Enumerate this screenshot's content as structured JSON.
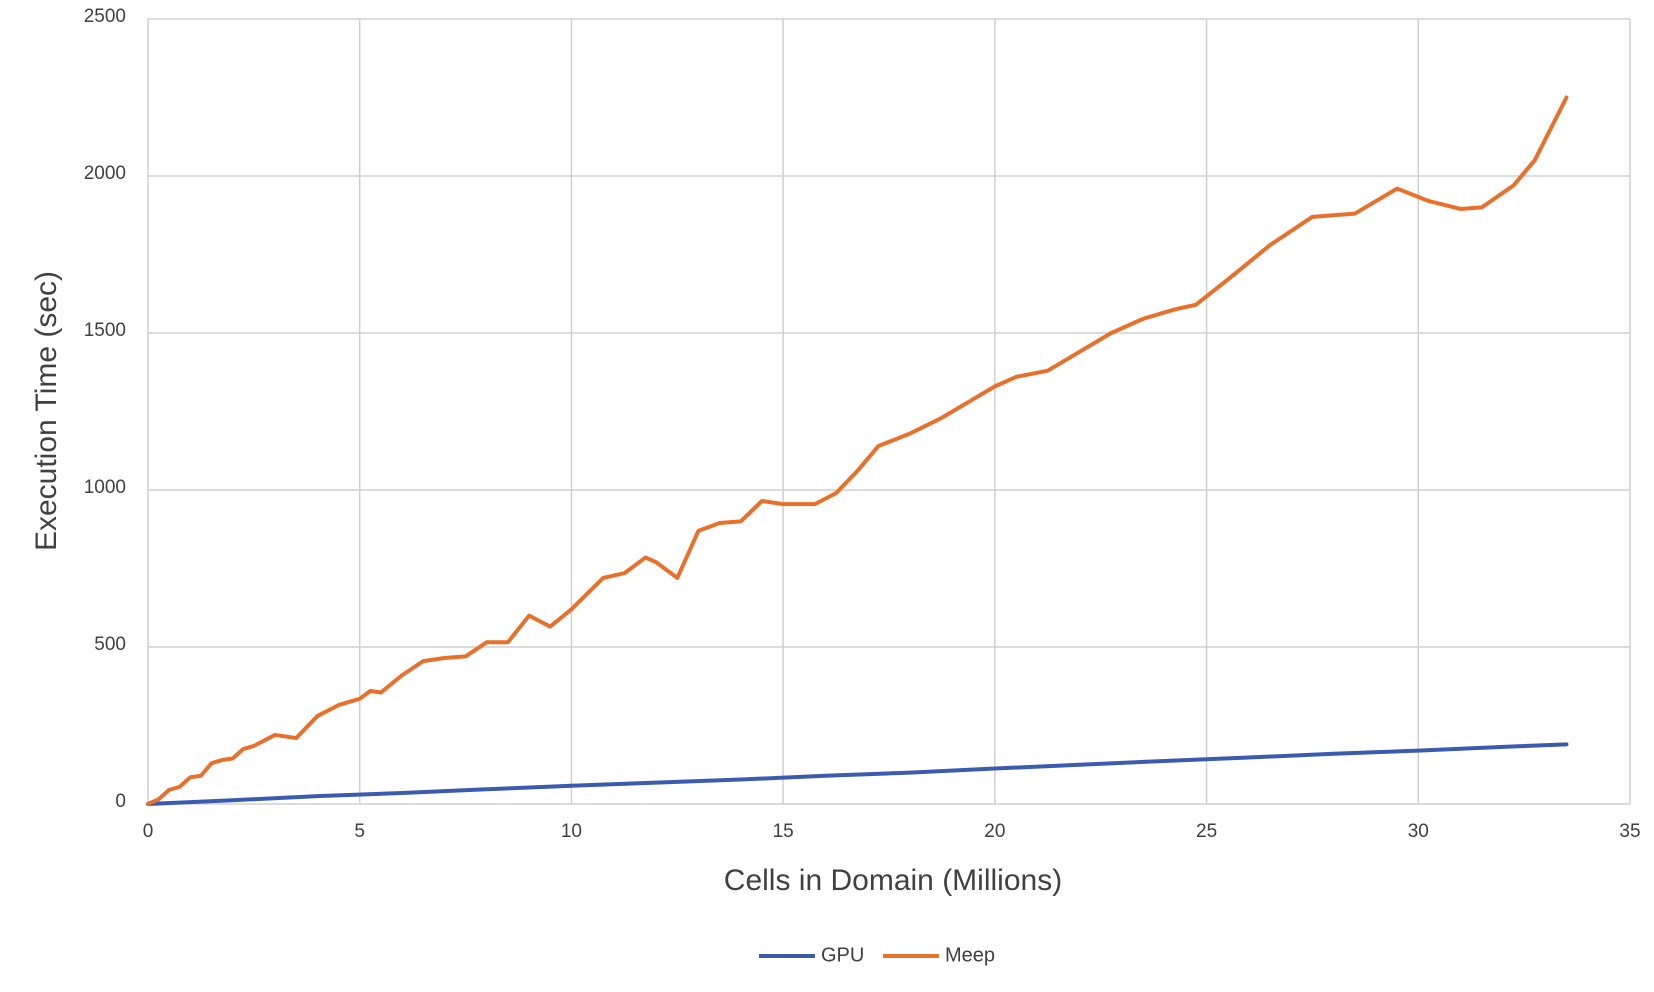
{
  "chart_data": {
    "type": "line",
    "xlabel": "Cells in Domain (Millions)",
    "ylabel": "Execution Time (sec)",
    "xlim": [
      0,
      35
    ],
    "xticks": [
      0,
      5,
      10,
      15,
      20,
      25,
      30,
      35
    ],
    "ylim": [
      0,
      2500
    ],
    "yticks": [
      0,
      500,
      1000,
      1500,
      2000,
      2500
    ],
    "grid": true,
    "legend": "bottom",
    "series": [
      {
        "name": "GPU",
        "color": "#3a5bb0",
        "x": [
          0,
          2,
          4,
          6,
          8,
          10,
          12,
          14,
          16,
          18,
          20,
          22,
          24,
          26,
          28,
          30,
          32,
          33.5
        ],
        "values": [
          0,
          12,
          25,
          35,
          47,
          58,
          68,
          78,
          90,
          100,
          113,
          125,
          137,
          148,
          160,
          170,
          182,
          190
        ]
      },
      {
        "name": "Meep",
        "color": "#e8702a",
        "x": [
          0,
          0.25,
          0.5,
          0.75,
          1,
          1.25,
          1.5,
          1.75,
          2,
          2.25,
          2.5,
          3,
          3.5,
          4,
          4.5,
          5,
          5.25,
          5.5,
          6,
          6.5,
          7,
          7.5,
          8,
          8.5,
          9,
          9.5,
          10,
          10.75,
          11.25,
          11.75,
          12,
          12.5,
          13,
          13.5,
          14,
          14.5,
          15,
          15.75,
          16.25,
          16.75,
          17.25,
          18,
          18.75,
          19.5,
          20,
          20.5,
          21.25,
          22,
          22.75,
          23.5,
          24.25,
          24.75,
          25.5,
          26.5,
          27.5,
          28.5,
          29.5,
          30.25,
          31,
          31.5,
          32.25,
          32.75,
          33.5
        ],
        "values": [
          0,
          15,
          45,
          55,
          85,
          90,
          130,
          140,
          145,
          175,
          185,
          220,
          210,
          280,
          315,
          335,
          360,
          355,
          410,
          455,
          465,
          470,
          515,
          515,
          600,
          565,
          620,
          720,
          735,
          785,
          770,
          720,
          870,
          895,
          900,
          965,
          955,
          955,
          990,
          1060,
          1140,
          1180,
          1230,
          1290,
          1330,
          1360,
          1380,
          1440,
          1500,
          1545,
          1575,
          1590,
          1670,
          1780,
          1870,
          1880,
          1960,
          1920,
          1895,
          1900,
          1970,
          2050,
          2250
        ]
      }
    ]
  }
}
